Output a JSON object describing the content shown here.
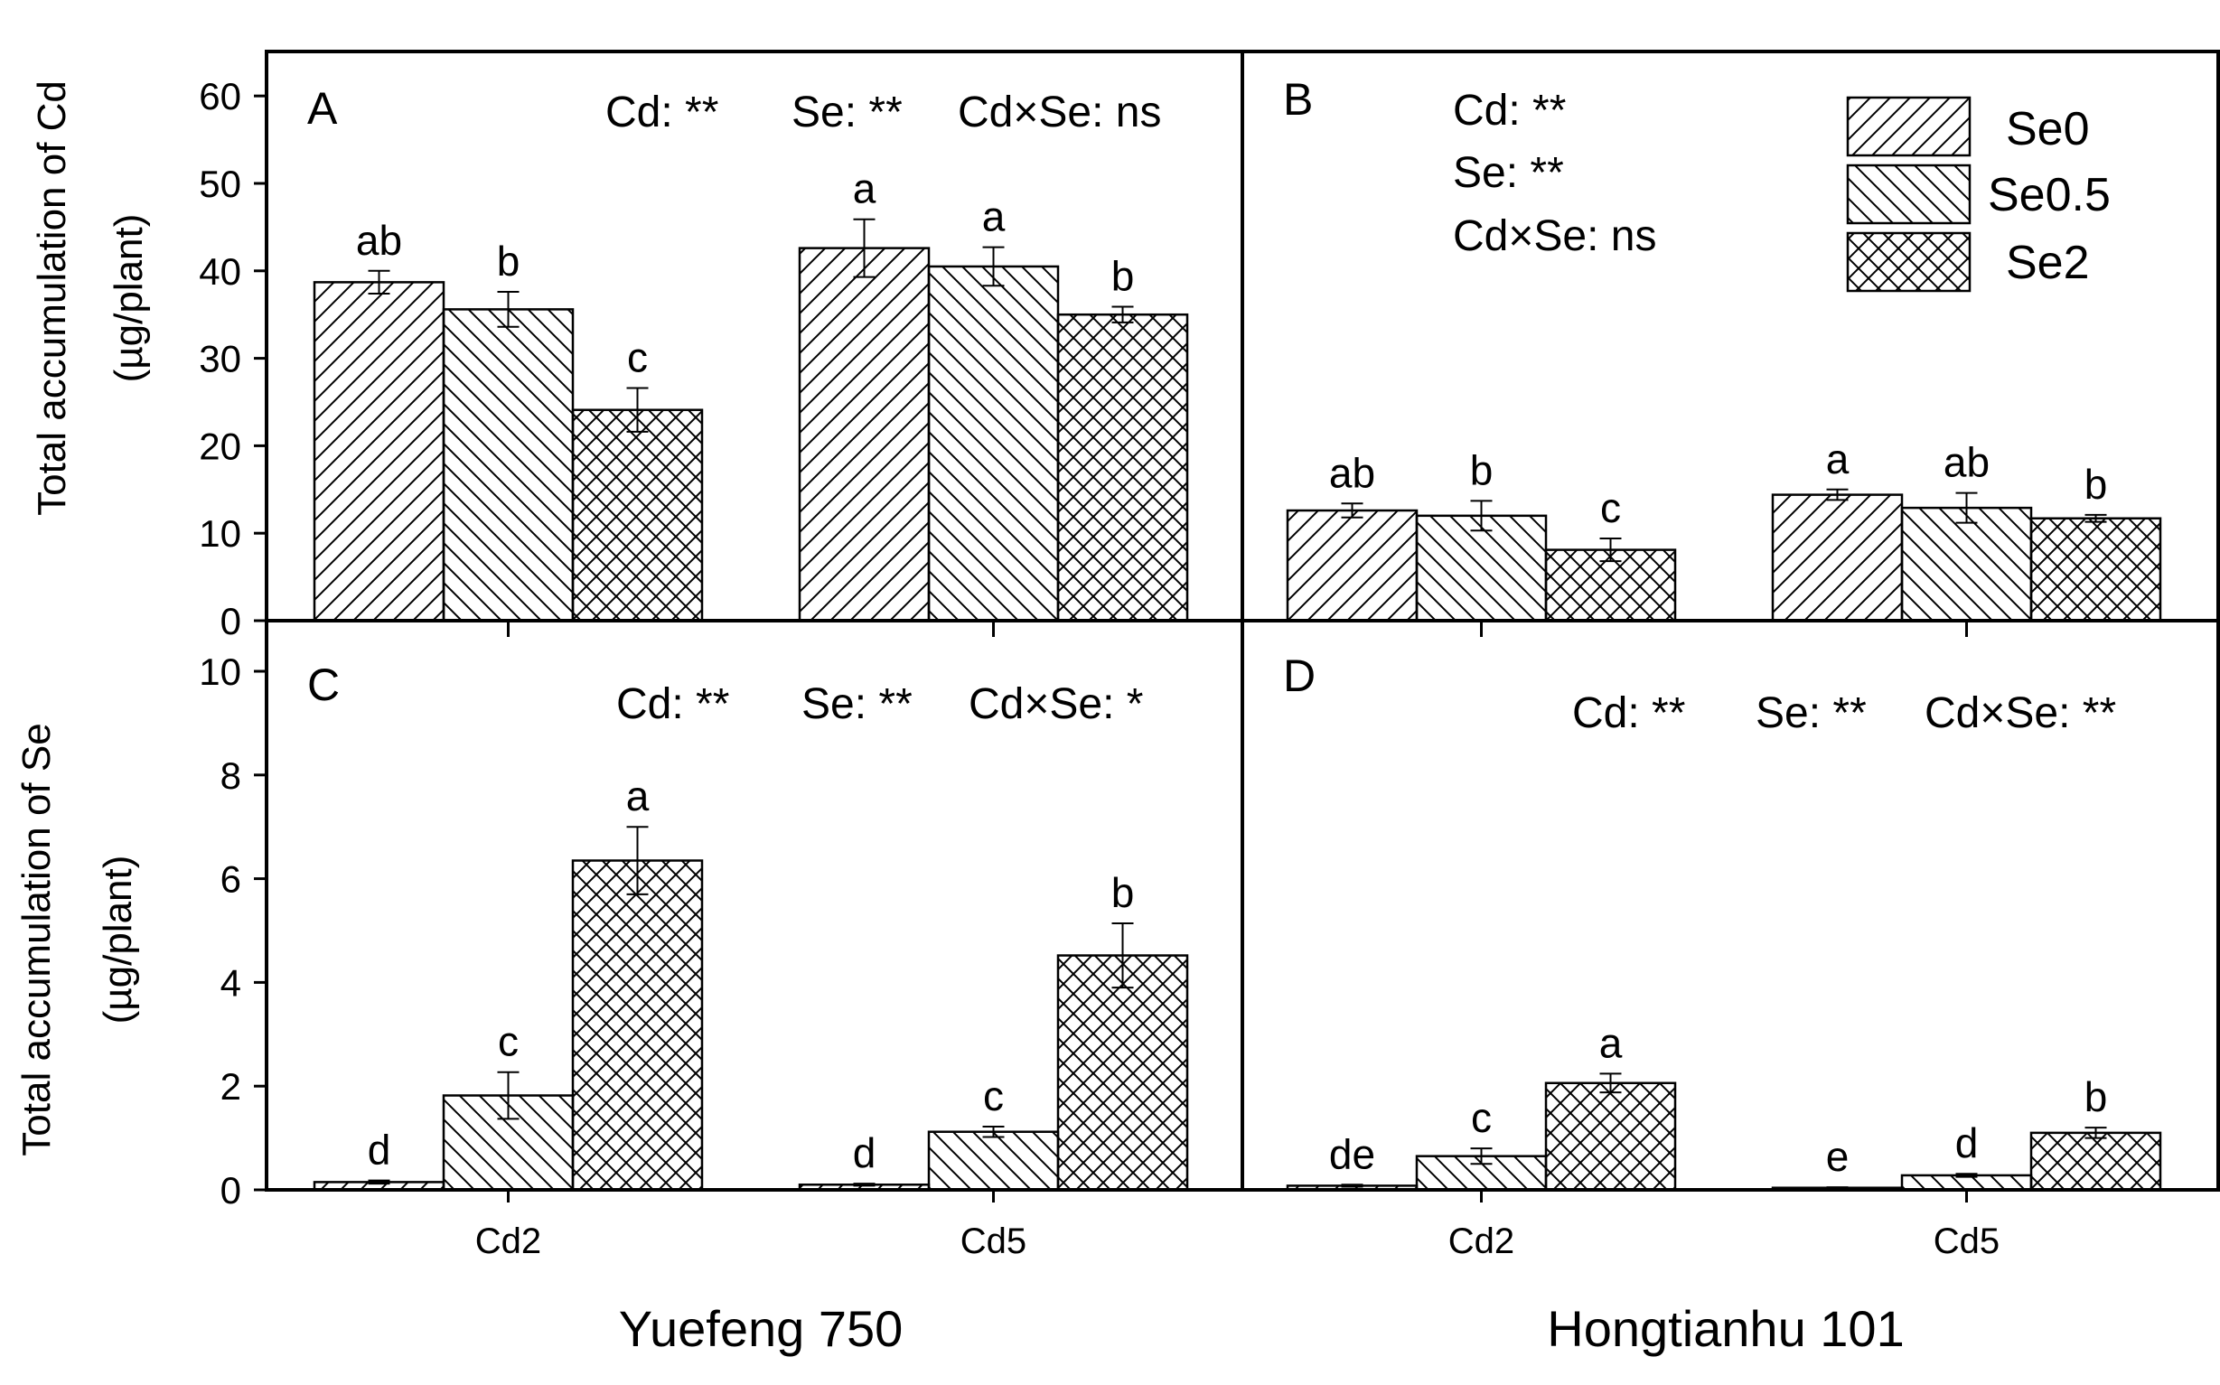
{
  "figure": {
    "y_labels": {
      "cd_line1": "Total accumulation of Cd",
      "cd_line2": "(µg/plant)",
      "se_line1": "Total accumulation of Se",
      "se_line2": "(µg/plant)"
    },
    "x_titles": [
      "Yuefeng 750",
      "Hongtianhu 101"
    ],
    "legend": [
      "Se0",
      "Se0.5",
      "Se2"
    ],
    "colors": {
      "axis": "#000000",
      "fill": "#ffffff",
      "hatch": "#000000"
    }
  },
  "chart_data": [
    {
      "panel": "A",
      "type": "bar",
      "title": "A",
      "xlabel": "",
      "ylabel": "Total accumulation of Cd (µg/plant)",
      "ylim": [
        0,
        65
      ],
      "yticks": [
        0,
        10,
        20,
        30,
        40,
        50,
        60
      ],
      "categories": [
        "Cd2",
        "Cd5"
      ],
      "series": [
        {
          "name": "Se0",
          "values": [
            38.7,
            42.6
          ],
          "errors": [
            1.3,
            3.3
          ],
          "letters": [
            "ab",
            "a"
          ]
        },
        {
          "name": "Se0.5",
          "values": [
            35.6,
            40.5
          ],
          "errors": [
            2.0,
            2.2
          ],
          "letters": [
            "b",
            "a"
          ]
        },
        {
          "name": "Se2",
          "values": [
            24.1,
            35.0
          ],
          "errors": [
            2.5,
            0.9
          ],
          "letters": [
            "c",
            "b"
          ]
        }
      ],
      "annotations": [
        "Cd: **",
        "Se: **",
        "Cd×Se: ns"
      ]
    },
    {
      "panel": "B",
      "type": "bar",
      "title": "B",
      "xlabel": "",
      "ylabel": "",
      "ylim": [
        0,
        65
      ],
      "yticks": [],
      "categories": [
        "Cd2",
        "Cd5"
      ],
      "series": [
        {
          "name": "Se0",
          "values": [
            12.6,
            14.4
          ],
          "errors": [
            0.8,
            0.6
          ],
          "letters": [
            "ab",
            "a"
          ]
        },
        {
          "name": "Se0.5",
          "values": [
            12.0,
            12.9
          ],
          "errors": [
            1.7,
            1.7
          ],
          "letters": [
            "b",
            "ab"
          ]
        },
        {
          "name": "Se2",
          "values": [
            8.1,
            11.7
          ],
          "errors": [
            1.3,
            0.4
          ],
          "letters": [
            "c",
            "b"
          ]
        }
      ],
      "annotations": [
        "Cd: **",
        "Se: **",
        "Cd×Se: ns"
      ]
    },
    {
      "panel": "C",
      "type": "bar",
      "title": "C",
      "xlabel": "Yuefeng 750",
      "ylabel": "Total accumulation of Se (µg/plant)",
      "ylim": [
        0,
        11
      ],
      "yticks": [
        0,
        2,
        4,
        6,
        8,
        10
      ],
      "categories": [
        "Cd2",
        "Cd5"
      ],
      "series": [
        {
          "name": "Se0",
          "values": [
            0.15,
            0.1
          ],
          "errors": [
            0.03,
            0.02
          ],
          "letters": [
            "d",
            "d"
          ]
        },
        {
          "name": "Se0.5",
          "values": [
            1.82,
            1.12
          ],
          "errors": [
            0.45,
            0.1
          ],
          "letters": [
            "c",
            "c"
          ]
        },
        {
          "name": "Se2",
          "values": [
            6.35,
            4.52
          ],
          "errors": [
            0.65,
            0.62
          ],
          "letters": [
            "a",
            "b"
          ]
        }
      ],
      "annotations": [
        "Cd: **",
        "Se: **",
        "Cd×Se: *"
      ]
    },
    {
      "panel": "D",
      "type": "bar",
      "title": "D",
      "xlabel": "Hongtianhu 101",
      "ylabel": "",
      "ylim": [
        0,
        11
      ],
      "yticks": [],
      "categories": [
        "Cd2",
        "Cd5"
      ],
      "series": [
        {
          "name": "Se0",
          "values": [
            0.08,
            0.04
          ],
          "errors": [
            0.02,
            0.01
          ],
          "letters": [
            "de",
            "e"
          ]
        },
        {
          "name": "Se0.5",
          "values": [
            0.65,
            0.28
          ],
          "errors": [
            0.15,
            0.03
          ],
          "letters": [
            "c",
            "d"
          ]
        },
        {
          "name": "Se2",
          "values": [
            2.06,
            1.1
          ],
          "errors": [
            0.18,
            0.1
          ],
          "letters": [
            "a",
            "b"
          ]
        }
      ],
      "annotations": [
        "Cd: **",
        "Se: **",
        "Cd×Se: **"
      ]
    }
  ]
}
